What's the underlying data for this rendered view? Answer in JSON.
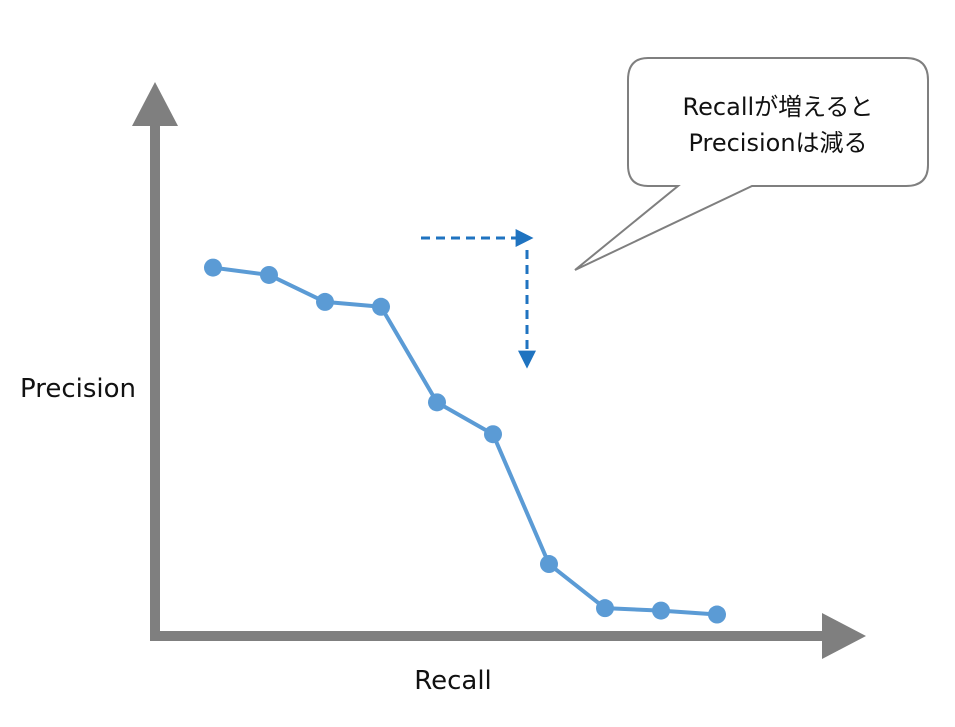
{
  "chart_data": {
    "type": "line",
    "title": "",
    "xlabel": "Recall",
    "ylabel": "Precision",
    "xlim": [
      0,
      10
    ],
    "ylim": [
      0,
      10
    ],
    "grid": false,
    "series": [
      {
        "x": [
          0.9,
          1.7,
          2.5,
          3.3,
          4.1,
          4.9,
          5.7,
          6.5,
          7.3,
          8.1
        ],
        "y": [
          7.6,
          7.45,
          6.9,
          6.8,
          4.85,
          4.2,
          1.55,
          0.65,
          0.6,
          0.52
        ]
      }
    ],
    "annotation": {
      "lines": [
        "Recallが増えると",
        "Precisionは減る"
      ]
    },
    "colors": {
      "series": "#5b9bd5",
      "axis": "#7f7f7f",
      "arrow": "#1f73c0",
      "callout_border": "#7f7f7f"
    }
  }
}
